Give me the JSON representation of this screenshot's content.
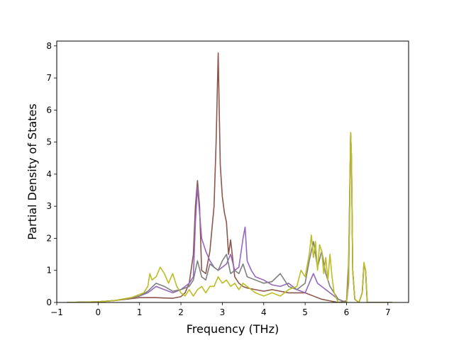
{
  "chart_data": {
    "type": "line",
    "title": "",
    "xlabel": "Frequency (THz)",
    "ylabel": "Partial Density of States",
    "xlim": [
      -1.0,
      7.5
    ],
    "ylim": [
      0,
      8.15
    ],
    "xticks": [
      -1,
      0,
      1,
      2,
      3,
      4,
      5,
      6,
      7
    ],
    "yticks": [
      0,
      1,
      2,
      3,
      4,
      5,
      6,
      7,
      8
    ],
    "grid": false,
    "legend": "none",
    "series": [
      {
        "color": "#8c564b",
        "x": [
          -0.75,
          0,
          0.4,
          0.8,
          1.0,
          1.2,
          1.4,
          1.6,
          1.8,
          2.0,
          2.1,
          2.2,
          2.3,
          2.35,
          2.4,
          2.45,
          2.5,
          2.6,
          2.7,
          2.8,
          2.85,
          2.9,
          2.95,
          3.0,
          3.05,
          3.1,
          3.15,
          3.2,
          3.3,
          3.4,
          3.5,
          3.6,
          3.8,
          4.0,
          4.2,
          4.4,
          4.6,
          4.8,
          5.0,
          5.2,
          5.4,
          5.6,
          5.8,
          6.0,
          6.05,
          6.1,
          6.12,
          6.15,
          6.2,
          6.3,
          6.38,
          6.42,
          6.46,
          6.5,
          6.7,
          7.1
        ],
        "y": [
          0,
          0.02,
          0.06,
          0.12,
          0.15,
          0.15,
          0.15,
          0.14,
          0.13,
          0.18,
          0.3,
          0.6,
          1.5,
          3.0,
          3.8,
          3.0,
          1.0,
          0.9,
          1.6,
          3.0,
          5.0,
          7.78,
          4.3,
          3.3,
          2.8,
          2.5,
          1.5,
          1.95,
          0.8,
          0.6,
          0.5,
          0.45,
          0.4,
          0.35,
          0.4,
          0.35,
          0.3,
          0.3,
          0.3,
          0.2,
          0.1,
          0.05,
          0,
          0.05,
          1.2,
          5.3,
          4.5,
          1.0,
          0.1,
          0,
          0.3,
          1.2,
          1.0,
          0,
          0,
          0
        ]
      },
      {
        "color": "#9467bd",
        "x": [
          -0.75,
          0,
          0.4,
          0.8,
          1.0,
          1.2,
          1.4,
          1.6,
          1.8,
          2.0,
          2.1,
          2.2,
          2.3,
          2.35,
          2.4,
          2.45,
          2.5,
          2.6,
          2.7,
          2.8,
          2.9,
          3.0,
          3.1,
          3.2,
          3.3,
          3.4,
          3.5,
          3.55,
          3.6,
          3.7,
          3.8,
          4.0,
          4.2,
          4.4,
          4.6,
          4.8,
          5.0,
          5.1,
          5.2,
          5.3,
          5.4,
          5.5,
          5.6,
          5.8,
          6.0,
          6.05,
          6.1,
          6.12,
          6.15,
          6.2,
          6.3,
          6.38,
          6.42,
          6.46,
          6.5,
          6.7,
          7.1
        ],
        "y": [
          0,
          0.02,
          0.06,
          0.15,
          0.2,
          0.3,
          0.5,
          0.4,
          0.3,
          0.4,
          0.5,
          0.6,
          0.8,
          2.5,
          3.6,
          2.8,
          2.0,
          1.6,
          1.3,
          1.1,
          1.0,
          1.1,
          1.2,
          1.5,
          1.0,
          1.1,
          2.0,
          2.35,
          1.3,
          1.0,
          0.8,
          0.7,
          0.55,
          0.5,
          0.6,
          0.4,
          0.3,
          0.6,
          0.9,
          0.6,
          0.5,
          0.4,
          0.3,
          0.1,
          0,
          0.6,
          5.2,
          4.5,
          1.0,
          0.1,
          0,
          0.3,
          1.2,
          1.0,
          0,
          0,
          0
        ]
      },
      {
        "color": "#7f7f7f",
        "x": [
          -0.75,
          0,
          0.4,
          0.8,
          1.0,
          1.2,
          1.4,
          1.6,
          1.8,
          2.0,
          2.2,
          2.3,
          2.4,
          2.5,
          2.6,
          2.7,
          2.8,
          2.9,
          3.0,
          3.1,
          3.2,
          3.3,
          3.4,
          3.5,
          3.6,
          3.8,
          4.0,
          4.2,
          4.4,
          4.6,
          4.8,
          5.0,
          5.1,
          5.2,
          5.3,
          5.4,
          5.5,
          5.6,
          5.8,
          6.0,
          6.05,
          6.1,
          6.12,
          6.15,
          6.2,
          6.3,
          6.38,
          6.42,
          6.46,
          6.5,
          6.7,
          7.1
        ],
        "y": [
          0,
          0.02,
          0.06,
          0.15,
          0.2,
          0.35,
          0.6,
          0.5,
          0.35,
          0.4,
          0.5,
          0.7,
          1.3,
          0.8,
          0.7,
          1.2,
          1.1,
          1.0,
          1.3,
          1.5,
          0.9,
          1.0,
          0.9,
          1.2,
          0.8,
          0.7,
          0.6,
          0.65,
          0.9,
          0.5,
          0.4,
          0.6,
          1.3,
          1.9,
          1.1,
          1.6,
          0.9,
          0.5,
          0.1,
          0,
          0.7,
          5.25,
          4.5,
          1.0,
          0.1,
          0,
          0.3,
          1.2,
          1.0,
          0,
          0,
          0
        ]
      },
      {
        "color": "#bcbd22",
        "x": [
          -0.75,
          0,
          0.4,
          0.8,
          1.0,
          1.1,
          1.2,
          1.25,
          1.3,
          1.4,
          1.5,
          1.6,
          1.7,
          1.8,
          1.9,
          2.0,
          2.1,
          2.2,
          2.3,
          2.4,
          2.5,
          2.6,
          2.7,
          2.8,
          2.9,
          3.0,
          3.1,
          3.2,
          3.3,
          3.4,
          3.5,
          3.6,
          3.7,
          3.8,
          4.0,
          4.2,
          4.4,
          4.6,
          4.8,
          4.9,
          5.0,
          5.1,
          5.15,
          5.2,
          5.25,
          5.3,
          5.35,
          5.4,
          5.45,
          5.5,
          5.55,
          5.6,
          5.65,
          5.7,
          5.8,
          6.0,
          6.05,
          6.1,
          6.12,
          6.15,
          6.2,
          6.3,
          6.38,
          6.42,
          6.46,
          6.5,
          6.7,
          7.1
        ],
        "y": [
          0,
          0.02,
          0.06,
          0.15,
          0.25,
          0.3,
          0.5,
          0.9,
          0.7,
          0.8,
          1.1,
          0.9,
          0.6,
          0.9,
          0.5,
          0.3,
          0.2,
          0.4,
          0.2,
          0.4,
          0.5,
          0.3,
          0.5,
          0.5,
          0.8,
          0.6,
          0.7,
          0.5,
          0.6,
          0.4,
          0.6,
          0.5,
          0.4,
          0.3,
          0.2,
          0.3,
          0.2,
          0.4,
          0.5,
          1.0,
          0.8,
          1.5,
          2.1,
          1.4,
          1.9,
          1.0,
          1.8,
          1.6,
          0.9,
          1.4,
          0.7,
          1.5,
          0.8,
          0.3,
          0,
          0,
          0.8,
          5.3,
          4.6,
          1.0,
          0.1,
          0,
          0.3,
          1.25,
          1.0,
          0,
          0,
          0
        ]
      }
    ]
  }
}
